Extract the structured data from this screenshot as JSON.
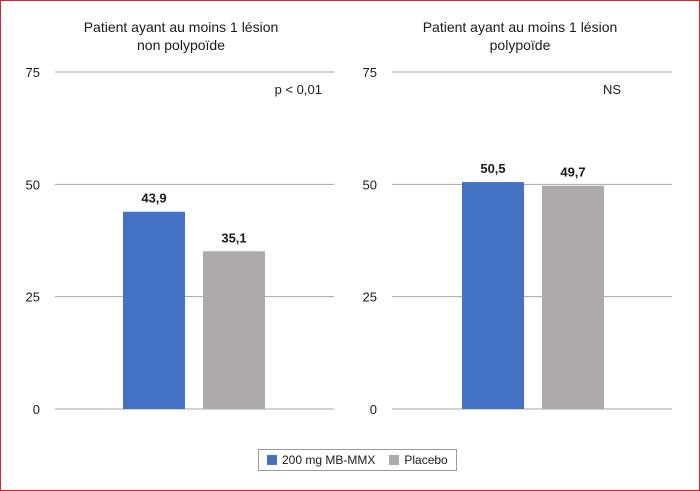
{
  "colors": {
    "treatment": "#4472c4",
    "placebo": "#aeaaaa",
    "grid": "#a6a6a6",
    "frame": "#d8232a"
  },
  "legend": [
    {
      "label": "200 mg MB-MMX",
      "color": "#4472c4"
    },
    {
      "label": "Placebo",
      "color": "#aeaaaa"
    }
  ],
  "chart_data": [
    {
      "type": "bar",
      "title_line1": "Patient ayant au moins 1 lésion",
      "title_line2": "non polypoïde",
      "annotation": "p < 0,01",
      "ylim": [
        0,
        75
      ],
      "yticks": [
        "75",
        "50",
        "25",
        "0"
      ],
      "ytick_values": [
        75,
        50,
        25,
        0
      ],
      "grid": true,
      "series": [
        {
          "name": "200 mg MB-MMX",
          "value": 43.9,
          "label": "43,9"
        },
        {
          "name": "Placebo",
          "value": 35.1,
          "label": "35,1"
        }
      ]
    },
    {
      "type": "bar",
      "title_line1": "Patient ayant au moins 1 lésion",
      "title_line2": "polypoïde",
      "annotation": "NS",
      "ylim": [
        0,
        75
      ],
      "yticks": [
        "75",
        "50",
        "25",
        "0"
      ],
      "ytick_values": [
        75,
        50,
        25,
        0
      ],
      "grid": true,
      "series": [
        {
          "name": "200 mg MB-MMX",
          "value": 50.5,
          "label": "50,5"
        },
        {
          "name": "Placebo",
          "value": 49.7,
          "label": "49,7"
        }
      ]
    }
  ]
}
